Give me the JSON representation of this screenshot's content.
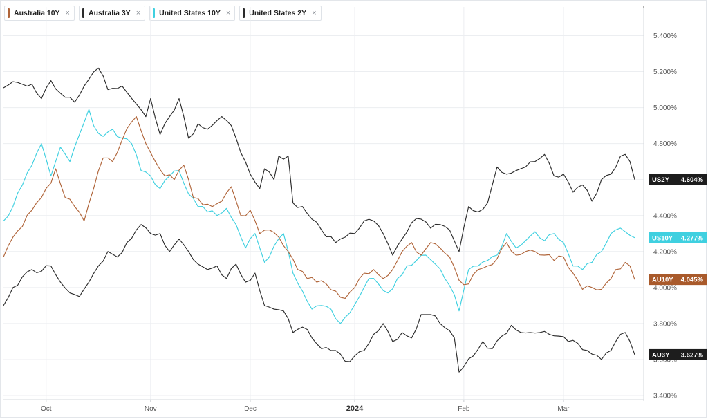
{
  "legend": [
    {
      "label": "Australia 10Y",
      "color": "#b0653a",
      "close": "×"
    },
    {
      "label": "Australia 3Y",
      "color": "#2b2b2b",
      "close": "×"
    },
    {
      "label": "United States 10Y",
      "color": "#3fd0e0",
      "close": "×"
    },
    {
      "label": "United States 2Y",
      "color": "#2b2b2b",
      "close": "×"
    }
  ],
  "chart_data": {
    "type": "line",
    "ylim": [
      3.4,
      5.6
    ],
    "y_ticks": [
      "5.400%",
      "5.200%",
      "5.000%",
      "4.800%",
      "4.600%",
      "4.400%",
      "4.200%",
      "4.000%",
      "3.800%",
      "3.600%",
      "3.400%"
    ],
    "x_ticks": [
      {
        "label": "Oct",
        "index": 9,
        "strong": false
      },
      {
        "label": "Nov",
        "index": 31,
        "strong": false
      },
      {
        "label": "Dec",
        "index": 52,
        "strong": false
      },
      {
        "label": "2024",
        "index": 74,
        "strong": true
      },
      {
        "label": "Feb",
        "index": 97,
        "strong": false
      },
      {
        "label": "Mar",
        "index": 118,
        "strong": false
      }
    ],
    "series": [
      {
        "name": "United States 2Y",
        "tag": "US2Y",
        "last": "4.604%",
        "color": "#2b2b2b",
        "tag_bg": "#1d1d1d",
        "keypoints": [
          [
            0,
            5.11
          ],
          [
            3,
            5.14
          ],
          [
            6,
            5.13
          ],
          [
            8,
            5.05
          ],
          [
            10,
            5.15
          ],
          [
            12,
            5.08
          ],
          [
            15,
            5.03
          ],
          [
            17,
            5.12
          ],
          [
            20,
            5.22
          ],
          [
            22,
            5.1
          ],
          [
            25,
            5.12
          ],
          [
            28,
            5.02
          ],
          [
            30,
            4.95
          ],
          [
            31,
            5.05
          ],
          [
            33,
            4.85
          ],
          [
            35,
            4.95
          ],
          [
            37,
            5.05
          ],
          [
            39,
            4.83
          ],
          [
            41,
            4.91
          ],
          [
            43,
            4.88
          ],
          [
            46,
            4.95
          ],
          [
            48,
            4.9
          ],
          [
            50,
            4.75
          ],
          [
            52,
            4.63
          ],
          [
            54,
            4.55
          ],
          [
            55,
            4.66
          ],
          [
            57,
            4.6
          ],
          [
            58,
            4.73
          ],
          [
            60,
            4.73
          ],
          [
            61,
            4.47
          ],
          [
            63,
            4.45
          ],
          [
            65,
            4.38
          ],
          [
            67,
            4.32
          ],
          [
            70,
            4.25
          ],
          [
            72,
            4.28
          ],
          [
            74,
            4.3
          ],
          [
            76,
            4.37
          ],
          [
            78,
            4.37
          ],
          [
            80,
            4.3
          ],
          [
            82,
            4.18
          ],
          [
            84,
            4.27
          ],
          [
            86,
            4.36
          ],
          [
            88,
            4.38
          ],
          [
            90,
            4.33
          ],
          [
            92,
            4.35
          ],
          [
            94,
            4.32
          ],
          [
            96,
            4.2
          ],
          [
            98,
            4.45
          ],
          [
            100,
            4.42
          ],
          [
            102,
            4.47
          ],
          [
            104,
            4.67
          ],
          [
            106,
            4.63
          ],
          [
            108,
            4.65
          ],
          [
            110,
            4.67
          ],
          [
            112,
            4.7
          ],
          [
            114,
            4.74
          ],
          [
            115,
            4.69
          ],
          [
            116,
            4.62
          ],
          [
            118,
            4.63
          ],
          [
            120,
            4.53
          ],
          [
            122,
            4.57
          ],
          [
            124,
            4.48
          ],
          [
            126,
            4.6
          ],
          [
            128,
            4.63
          ],
          [
            130,
            4.73
          ],
          [
            131,
            4.74
          ],
          [
            132,
            4.7
          ],
          [
            133,
            4.6
          ]
        ]
      },
      {
        "name": "United States 10Y",
        "tag": "US10Y",
        "last": "4.277%",
        "color": "#3fd0e0",
        "tag_bg": "#3fd0e0",
        "keypoints": [
          [
            0,
            4.37
          ],
          [
            2,
            4.45
          ],
          [
            4,
            4.57
          ],
          [
            6,
            4.68
          ],
          [
            8,
            4.8
          ],
          [
            10,
            4.62
          ],
          [
            12,
            4.78
          ],
          [
            14,
            4.7
          ],
          [
            16,
            4.85
          ],
          [
            18,
            4.99
          ],
          [
            19,
            4.9
          ],
          [
            21,
            4.84
          ],
          [
            23,
            4.88
          ],
          [
            25,
            4.83
          ],
          [
            27,
            4.8
          ],
          [
            29,
            4.65
          ],
          [
            31,
            4.62
          ],
          [
            33,
            4.55
          ],
          [
            35,
            4.62
          ],
          [
            37,
            4.65
          ],
          [
            39,
            4.52
          ],
          [
            41,
            4.45
          ],
          [
            43,
            4.42
          ],
          [
            45,
            4.4
          ],
          [
            47,
            4.44
          ],
          [
            49,
            4.35
          ],
          [
            51,
            4.22
          ],
          [
            53,
            4.3
          ],
          [
            55,
            4.14
          ],
          [
            57,
            4.23
          ],
          [
            59,
            4.3
          ],
          [
            61,
            4.08
          ],
          [
            63,
            3.98
          ],
          [
            65,
            3.88
          ],
          [
            67,
            3.9
          ],
          [
            69,
            3.88
          ],
          [
            71,
            3.8
          ],
          [
            73,
            3.86
          ],
          [
            75,
            3.95
          ],
          [
            77,
            4.05
          ],
          [
            79,
            4.02
          ],
          [
            81,
            3.97
          ],
          [
            83,
            4.05
          ],
          [
            85,
            4.12
          ],
          [
            87,
            4.15
          ],
          [
            89,
            4.18
          ],
          [
            91,
            4.13
          ],
          [
            93,
            4.05
          ],
          [
            95,
            3.96
          ],
          [
            96,
            3.87
          ],
          [
            98,
            4.1
          ],
          [
            100,
            4.12
          ],
          [
            102,
            4.15
          ],
          [
            104,
            4.18
          ],
          [
            106,
            4.3
          ],
          [
            108,
            4.22
          ],
          [
            110,
            4.26
          ],
          [
            112,
            4.31
          ],
          [
            114,
            4.26
          ],
          [
            116,
            4.3
          ],
          [
            118,
            4.25
          ],
          [
            120,
            4.12
          ],
          [
            122,
            4.1
          ],
          [
            124,
            4.14
          ],
          [
            126,
            4.2
          ],
          [
            128,
            4.3
          ],
          [
            130,
            4.33
          ],
          [
            131,
            4.31
          ],
          [
            132,
            4.29
          ],
          [
            133,
            4.277
          ]
        ]
      },
      {
        "name": "Australia 10Y",
        "tag": "AU10Y",
        "last": "4.045%",
        "color": "#b0653a",
        "tag_bg": "#a95a2b",
        "keypoints": [
          [
            0,
            4.17
          ],
          [
            2,
            4.28
          ],
          [
            4,
            4.34
          ],
          [
            6,
            4.43
          ],
          [
            8,
            4.5
          ],
          [
            10,
            4.58
          ],
          [
            11,
            4.66
          ],
          [
            13,
            4.5
          ],
          [
            15,
            4.45
          ],
          [
            17,
            4.37
          ],
          [
            19,
            4.55
          ],
          [
            21,
            4.72
          ],
          [
            23,
            4.7
          ],
          [
            25,
            4.82
          ],
          [
            27,
            4.92
          ],
          [
            28,
            4.95
          ],
          [
            30,
            4.8
          ],
          [
            32,
            4.7
          ],
          [
            34,
            4.62
          ],
          [
            36,
            4.6
          ],
          [
            38,
            4.68
          ],
          [
            40,
            4.5
          ],
          [
            42,
            4.46
          ],
          [
            44,
            4.45
          ],
          [
            46,
            4.48
          ],
          [
            48,
            4.56
          ],
          [
            50,
            4.4
          ],
          [
            52,
            4.43
          ],
          [
            54,
            4.3
          ],
          [
            56,
            4.32
          ],
          [
            58,
            4.28
          ],
          [
            60,
            4.2
          ],
          [
            62,
            4.1
          ],
          [
            64,
            4.05
          ],
          [
            66,
            4.03
          ],
          [
            68,
            4.02
          ],
          [
            70,
            3.98
          ],
          [
            72,
            3.94
          ],
          [
            74,
            4.0
          ],
          [
            76,
            4.08
          ],
          [
            78,
            4.1
          ],
          [
            80,
            4.05
          ],
          [
            82,
            4.1
          ],
          [
            84,
            4.2
          ],
          [
            86,
            4.25
          ],
          [
            88,
            4.18
          ],
          [
            90,
            4.25
          ],
          [
            92,
            4.22
          ],
          [
            94,
            4.17
          ],
          [
            96,
            4.04
          ],
          [
            98,
            4.02
          ],
          [
            100,
            4.1
          ],
          [
            102,
            4.12
          ],
          [
            104,
            4.16
          ],
          [
            106,
            4.25
          ],
          [
            108,
            4.18
          ],
          [
            110,
            4.2
          ],
          [
            112,
            4.2
          ],
          [
            114,
            4.18
          ],
          [
            116,
            4.15
          ],
          [
            118,
            4.17
          ],
          [
            120,
            4.08
          ],
          [
            122,
            3.99
          ],
          [
            124,
            4.0
          ],
          [
            126,
            3.99
          ],
          [
            128,
            4.05
          ],
          [
            129,
            4.1
          ],
          [
            131,
            4.14
          ],
          [
            132,
            4.12
          ],
          [
            133,
            4.045
          ]
        ]
      },
      {
        "name": "Australia 3Y",
        "tag": "AU3Y",
        "last": "3.627%",
        "color": "#2b2b2b",
        "tag_bg": "#1d1d1d",
        "keypoints": [
          [
            0,
            3.9
          ],
          [
            2,
            4.0
          ],
          [
            4,
            4.06
          ],
          [
            6,
            4.1
          ],
          [
            8,
            4.09
          ],
          [
            10,
            4.12
          ],
          [
            12,
            4.03
          ],
          [
            14,
            3.97
          ],
          [
            16,
            3.95
          ],
          [
            18,
            4.03
          ],
          [
            20,
            4.12
          ],
          [
            22,
            4.2
          ],
          [
            24,
            4.17
          ],
          [
            26,
            4.25
          ],
          [
            28,
            4.32
          ],
          [
            29,
            4.35
          ],
          [
            31,
            4.3
          ],
          [
            33,
            4.3
          ],
          [
            35,
            4.2
          ],
          [
            37,
            4.27
          ],
          [
            39,
            4.2
          ],
          [
            41,
            4.13
          ],
          [
            43,
            4.1
          ],
          [
            45,
            4.12
          ],
          [
            47,
            4.05
          ],
          [
            49,
            4.13
          ],
          [
            51,
            4.03
          ],
          [
            53,
            4.08
          ],
          [
            55,
            3.9
          ],
          [
            57,
            3.88
          ],
          [
            59,
            3.87
          ],
          [
            61,
            3.75
          ],
          [
            63,
            3.78
          ],
          [
            65,
            3.72
          ],
          [
            67,
            3.66
          ],
          [
            69,
            3.65
          ],
          [
            71,
            3.63
          ],
          [
            72,
            3.59
          ],
          [
            74,
            3.62
          ],
          [
            76,
            3.65
          ],
          [
            78,
            3.74
          ],
          [
            80,
            3.8
          ],
          [
            82,
            3.7
          ],
          [
            84,
            3.75
          ],
          [
            86,
            3.72
          ],
          [
            88,
            3.85
          ],
          [
            90,
            3.85
          ],
          [
            92,
            3.8
          ],
          [
            94,
            3.76
          ],
          [
            95,
            3.72
          ],
          [
            96,
            3.53
          ],
          [
            97,
            3.56
          ],
          [
            99,
            3.62
          ],
          [
            101,
            3.7
          ],
          [
            103,
            3.66
          ],
          [
            105,
            3.73
          ],
          [
            107,
            3.79
          ],
          [
            109,
            3.75
          ],
          [
            111,
            3.75
          ],
          [
            113,
            3.75
          ],
          [
            115,
            3.74
          ],
          [
            117,
            3.73
          ],
          [
            119,
            3.7
          ],
          [
            121,
            3.69
          ],
          [
            123,
            3.65
          ],
          [
            124,
            3.63
          ],
          [
            126,
            3.6
          ],
          [
            128,
            3.65
          ],
          [
            129,
            3.7
          ],
          [
            130,
            3.74
          ],
          [
            131,
            3.75
          ],
          [
            132,
            3.7
          ],
          [
            133,
            3.627
          ]
        ]
      }
    ]
  }
}
